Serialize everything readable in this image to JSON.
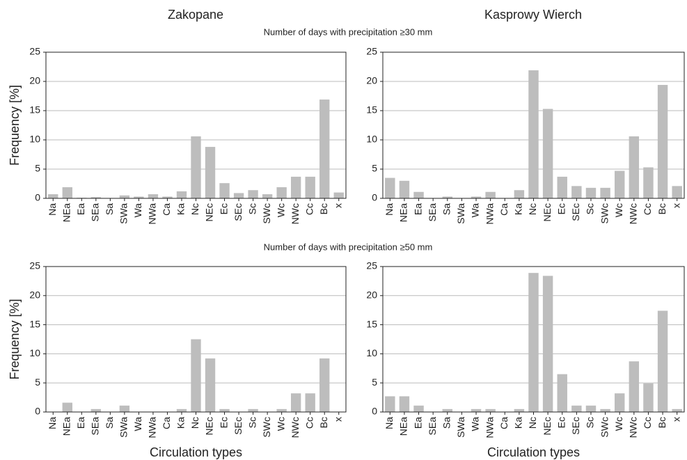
{
  "figure": {
    "column_titles": [
      "Zakopane",
      "Kasprowy Wierch"
    ],
    "row_titles": [
      "Number of days with precipitation ≥30 mm",
      "Number of days with precipitation ≥50 mm"
    ]
  },
  "chart_data": [
    {
      "type": "bar",
      "ylabel": "Frequency [%]",
      "categories": [
        "Na",
        "NEa",
        "Ea",
        "SEa",
        "Sa",
        "SWa",
        "Wa",
        "NWa",
        "Ca",
        "Ka",
        "Nc",
        "NEc",
        "Ec",
        "SEc",
        "Sc",
        "SWc",
        "Wc",
        "NWc",
        "Cc",
        "Bc",
        "x"
      ],
      "values": [
        0.7,
        1.9,
        0.1,
        0.2,
        0,
        0.5,
        0.3,
        0.7,
        0.3,
        1.2,
        10.6,
        8.8,
        2.6,
        0.9,
        1.4,
        0.7,
        1.9,
        3.7,
        3.7,
        16.9,
        1.0
      ],
      "color": "#bdbdbd",
      "ylim": [
        0,
        25
      ],
      "yticks": [
        0,
        5,
        10,
        15,
        20,
        25
      ],
      "grid": true
    },
    {
      "type": "bar",
      "categories": [
        "Na",
        "NEa",
        "Ea",
        "SEa",
        "Sa",
        "SWa",
        "Wa",
        "NWa",
        "Ca",
        "Ka",
        "Nc",
        "NEc",
        "Ec",
        "SEc",
        "Sc",
        "SWc",
        "Wc",
        "NWc",
        "Cc",
        "Bc",
        "x"
      ],
      "values": [
        3.5,
        3.0,
        1.1,
        0,
        0.3,
        0,
        0.3,
        1.1,
        0,
        1.4,
        21.9,
        15.3,
        3.7,
        2.1,
        1.8,
        1.8,
        4.7,
        10.6,
        5.3,
        19.4,
        2.1
      ],
      "color": "#bdbdbd",
      "ylim": [
        0,
        25
      ],
      "yticks": [
        0,
        5,
        10,
        15,
        20,
        25
      ],
      "grid": true
    },
    {
      "type": "bar",
      "ylabel": "Frequency [%]",
      "xlabel": "Circulation types",
      "categories": [
        "Na",
        "NEa",
        "Ea",
        "SEa",
        "Sa",
        "SWa",
        "Wa",
        "NWa",
        "Ca",
        "Ka",
        "Nc",
        "NEc",
        "Ec",
        "SEc",
        "Sc",
        "SWc",
        "Wc",
        "NWc",
        "Cc",
        "Bc",
        "x"
      ],
      "values": [
        0,
        1.6,
        0,
        0.5,
        0,
        1.1,
        0,
        0,
        0,
        0.5,
        12.5,
        9.2,
        0.5,
        0,
        0.5,
        0,
        0.5,
        3.2,
        3.2,
        9.2,
        0
      ],
      "color": "#bdbdbd",
      "ylim": [
        0,
        25
      ],
      "yticks": [
        0,
        5,
        10,
        15,
        20,
        25
      ],
      "grid": true
    },
    {
      "type": "bar",
      "xlabel": "Circulation types",
      "categories": [
        "Na",
        "NEa",
        "Ea",
        "SEa",
        "Sa",
        "SWa",
        "Wa",
        "NWa",
        "Ca",
        "Ka",
        "Nc",
        "NEc",
        "Ec",
        "SEc",
        "Sc",
        "SWc",
        "Wc",
        "NWc",
        "Cc",
        "Bc",
        "x"
      ],
      "values": [
        2.7,
        2.7,
        1.1,
        0,
        0.5,
        0,
        0.5,
        0.5,
        0,
        0.5,
        23.9,
        23.4,
        6.5,
        1.1,
        1.1,
        0.5,
        3.2,
        8.7,
        4.9,
        17.4,
        0.5
      ],
      "color": "#bdbdbd",
      "ylim": [
        0,
        25
      ],
      "yticks": [
        0,
        5,
        10,
        15,
        20,
        25
      ],
      "grid": true
    }
  ]
}
